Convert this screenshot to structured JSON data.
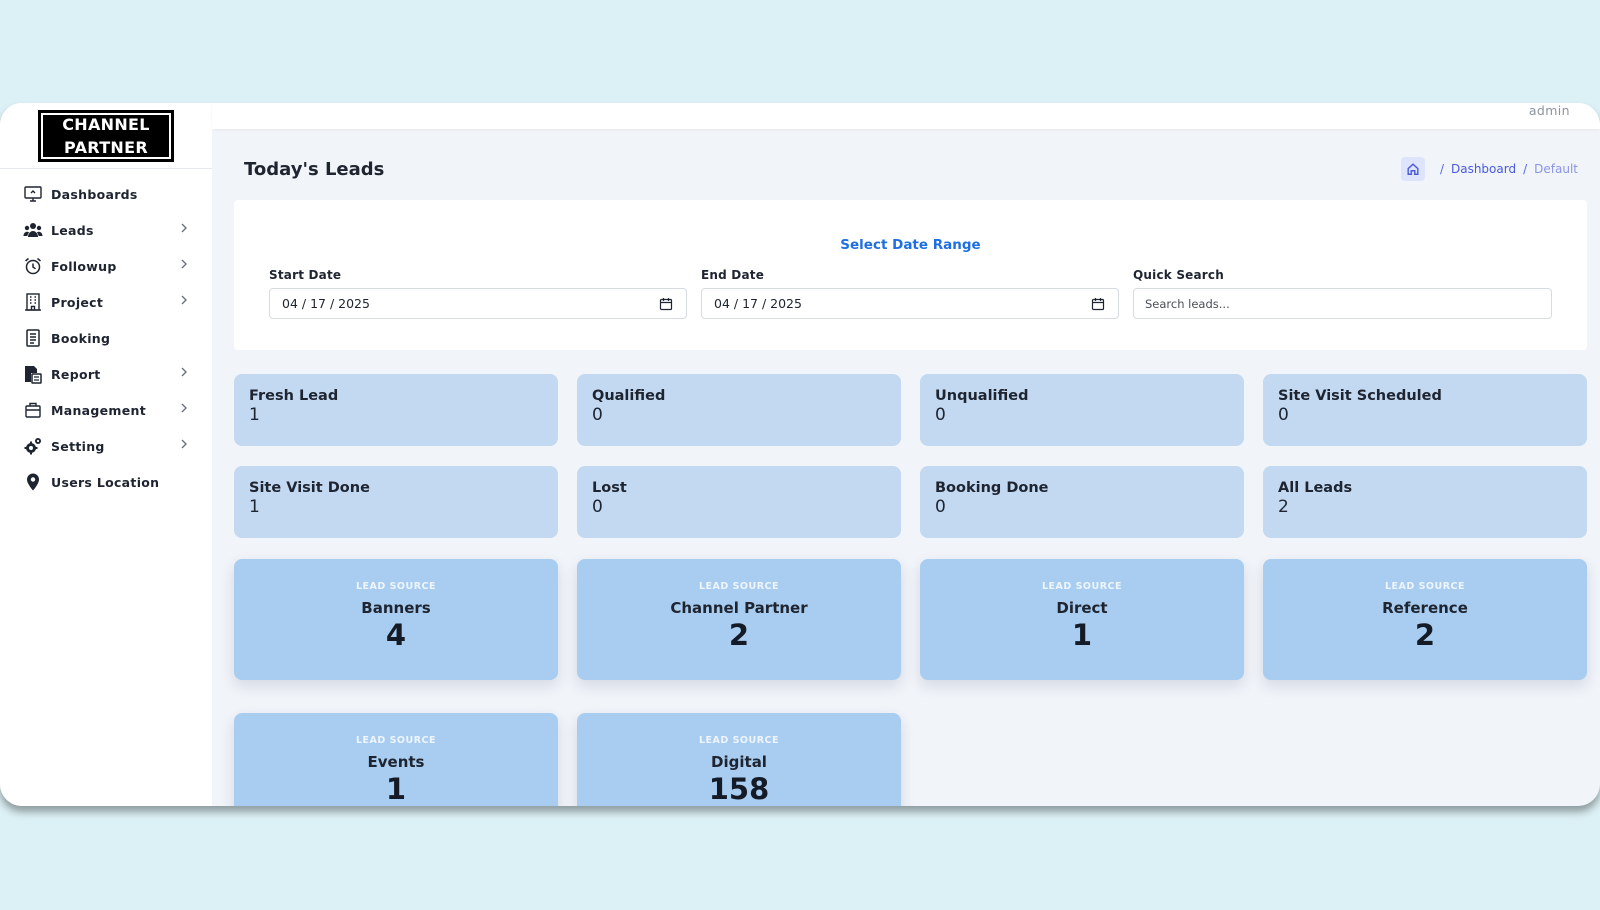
{
  "app": {
    "logo_text": "CHANNEL\nPARTNER",
    "user": "admin"
  },
  "sidebar": {
    "items": [
      {
        "label": "Dashboards",
        "icon": "monitor-icon",
        "has_children": false
      },
      {
        "label": "Leads",
        "icon": "users-group-icon",
        "has_children": true
      },
      {
        "label": "Followup",
        "icon": "alarm-clock-icon",
        "has_children": true
      },
      {
        "label": "Project",
        "icon": "building-icon",
        "has_children": true
      },
      {
        "label": "Booking",
        "icon": "document-icon",
        "has_children": false
      },
      {
        "label": "Report",
        "icon": "report-icon",
        "has_children": true
      },
      {
        "label": "Management",
        "icon": "briefcase-icon",
        "has_children": true
      },
      {
        "label": "Setting",
        "icon": "gears-icon",
        "has_children": true
      },
      {
        "label": "Users Location",
        "icon": "map-pin-icon",
        "has_children": false
      }
    ]
  },
  "page": {
    "title": "Today's Leads",
    "breadcrumb": {
      "link": "Dashboard",
      "current": "Default"
    }
  },
  "filters": {
    "heading": "Select Date Range",
    "start_label": "Start Date",
    "start_value": "04 / 17 / 2025",
    "end_label": "End Date",
    "end_value": "04 / 17 / 2025",
    "search_label": "Quick Search",
    "search_placeholder": "Search leads..."
  },
  "stats": [
    {
      "label": "Fresh Lead",
      "value": "1"
    },
    {
      "label": "Qualified",
      "value": "0"
    },
    {
      "label": "Unqualified",
      "value": "0"
    },
    {
      "label": "Site Visit Scheduled",
      "value": "0"
    },
    {
      "label": "Site Visit Done",
      "value": "1"
    },
    {
      "label": "Lost",
      "value": "0"
    },
    {
      "label": "Booking Done",
      "value": "0"
    },
    {
      "label": "All Leads",
      "value": "2"
    }
  ],
  "lead_sources": {
    "caption": "LEAD SOURCE",
    "items": [
      {
        "name": "Banners",
        "count": "4"
      },
      {
        "name": "Channel Partner",
        "count": "2"
      },
      {
        "name": "Direct",
        "count": "1"
      },
      {
        "name": "Reference",
        "count": "2"
      },
      {
        "name": "Events",
        "count": "1"
      },
      {
        "name": "Digital",
        "count": "158"
      }
    ]
  },
  "colors": {
    "page_bg": "#dcf1f5",
    "accent_blue": "#1f6fe0",
    "stat_card": "#c3d9f2",
    "source_card": "#a8cdf0"
  }
}
